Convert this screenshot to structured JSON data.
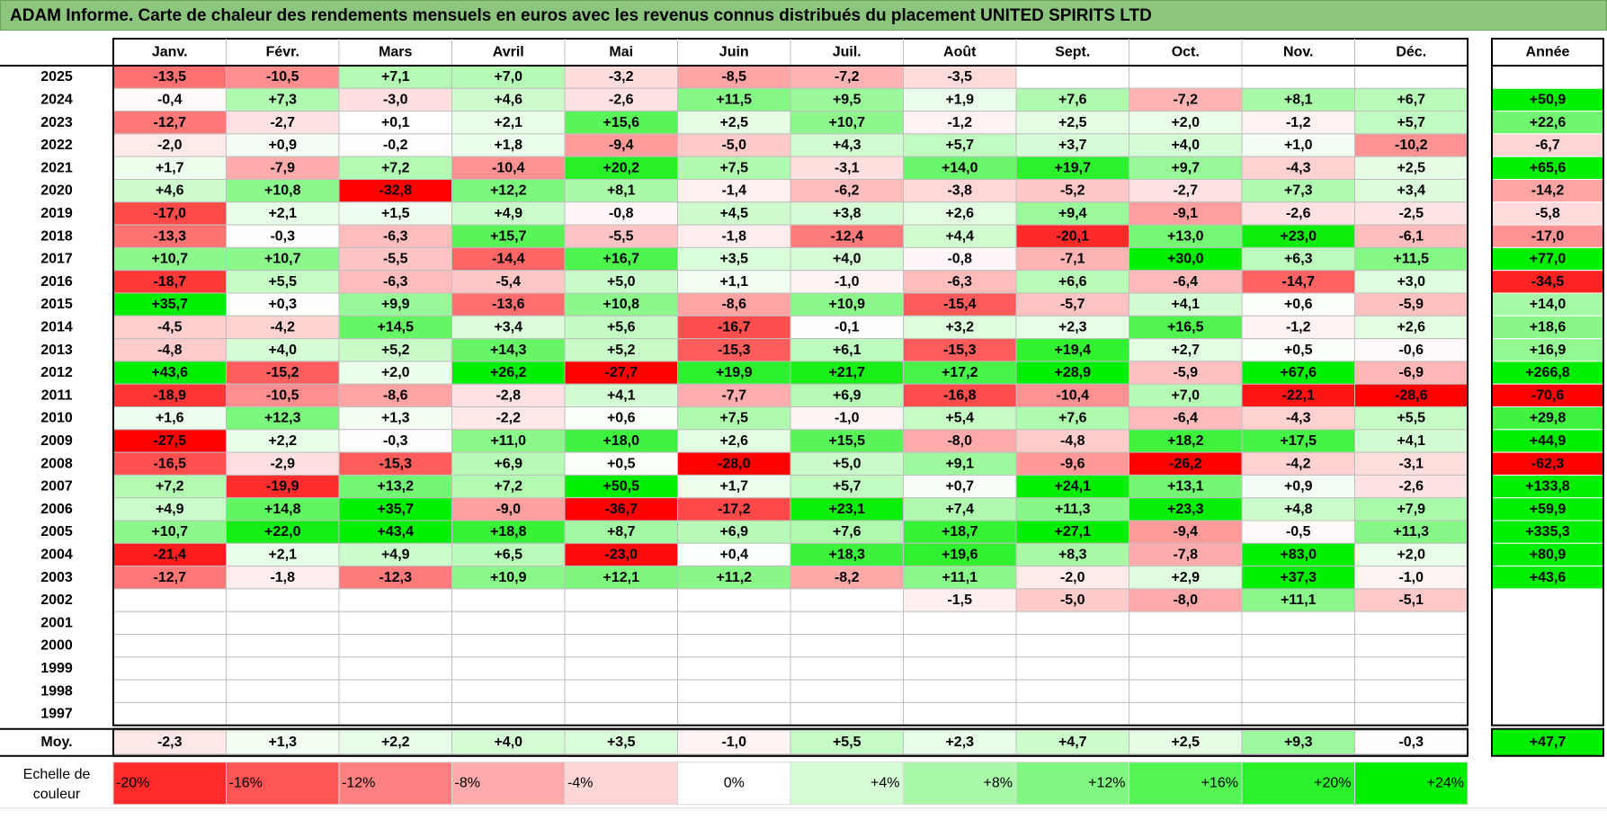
{
  "title": "ADAM Informe. Carte de chaleur des rendements mensuels en euros avec les revenus connus distribués du placement UNITED SPIRITS LTD",
  "chart_data": {
    "type": "heatmap",
    "months": [
      "Janv.",
      "Févr.",
      "Mars",
      "Avril",
      "Mai",
      "Juin",
      "Juil.",
      "Août",
      "Sept.",
      "Oct.",
      "Nov.",
      "Déc."
    ],
    "year_header": "Année",
    "rows": [
      {
        "year": "2025",
        "values": [
          "-13,5",
          "-10,5",
          "+7,1",
          "+7,0",
          "-3,2",
          "-8,5",
          "-7,2",
          "-3,5",
          "",
          "",
          "",
          ""
        ],
        "annual": ""
      },
      {
        "year": "2024",
        "values": [
          "-0,4",
          "+7,3",
          "-3,0",
          "+4,6",
          "-2,6",
          "+11,5",
          "+9,5",
          "+1,9",
          "+7,6",
          "-7,2",
          "+8,1",
          "+6,7"
        ],
        "annual": "+50,9"
      },
      {
        "year": "2023",
        "values": [
          "-12,7",
          "-2,7",
          "+0,1",
          "+2,1",
          "+15,6",
          "+2,5",
          "+10,7",
          "-1,2",
          "+2,5",
          "+2,0",
          "-1,2",
          "+5,7"
        ],
        "annual": "+22,6"
      },
      {
        "year": "2022",
        "values": [
          "-2,0",
          "+0,9",
          "-0,2",
          "+1,8",
          "-9,4",
          "-5,0",
          "+4,3",
          "+5,7",
          "+3,7",
          "+4,0",
          "+1,0",
          "-10,2"
        ],
        "annual": "-6,7"
      },
      {
        "year": "2021",
        "values": [
          "+1,7",
          "-7,9",
          "+7,2",
          "-10,4",
          "+20,2",
          "+7,5",
          "-3,1",
          "+14,0",
          "+19,7",
          "+9,7",
          "-4,3",
          "+2,5"
        ],
        "annual": "+65,6"
      },
      {
        "year": "2020",
        "values": [
          "+4,6",
          "+10,8",
          "-32,8",
          "+12,2",
          "+8,1",
          "-1,4",
          "-6,2",
          "-3,8",
          "-5,2",
          "-2,7",
          "+7,3",
          "+3,4"
        ],
        "annual": "-14,2"
      },
      {
        "year": "2019",
        "values": [
          "-17,0",
          "+2,1",
          "+1,5",
          "+4,9",
          "-0,8",
          "+4,5",
          "+3,8",
          "+2,6",
          "+9,4",
          "-9,1",
          "-2,6",
          "-2,5"
        ],
        "annual": "-5,8"
      },
      {
        "year": "2018",
        "values": [
          "-13,3",
          "-0,3",
          "-6,3",
          "+15,7",
          "-5,5",
          "-1,8",
          "-12,4",
          "+4,4",
          "-20,1",
          "+13,0",
          "+23,0",
          "-6,1"
        ],
        "annual": "-17,0"
      },
      {
        "year": "2017",
        "values": [
          "+10,7",
          "+10,7",
          "-5,5",
          "-14,4",
          "+16,7",
          "+3,5",
          "+4,0",
          "-0,8",
          "-7,1",
          "+30,0",
          "+6,3",
          "+11,5"
        ],
        "annual": "+77,0"
      },
      {
        "year": "2016",
        "values": [
          "-18,7",
          "+5,5",
          "-6,3",
          "-5,4",
          "+5,0",
          "+1,1",
          "-1,0",
          "-6,3",
          "+6,6",
          "-6,4",
          "-14,7",
          "+3,0"
        ],
        "annual": "-34,5"
      },
      {
        "year": "2015",
        "values": [
          "+35,7",
          "+0,3",
          "+9,9",
          "-13,6",
          "+10,8",
          "-8,6",
          "+10,9",
          "-15,4",
          "-5,7",
          "+4,1",
          "+0,6",
          "-5,9"
        ],
        "annual": "+14,0"
      },
      {
        "year": "2014",
        "values": [
          "-4,5",
          "-4,2",
          "+14,5",
          "+3,4",
          "+5,6",
          "-16,7",
          "-0,1",
          "+3,2",
          "+2,3",
          "+16,5",
          "-1,2",
          "+2,6"
        ],
        "annual": "+18,6"
      },
      {
        "year": "2013",
        "values": [
          "-4,8",
          "+4,0",
          "+5,2",
          "+14,3",
          "+5,2",
          "-15,3",
          "+6,1",
          "-15,3",
          "+19,4",
          "+2,7",
          "+0,5",
          "-0,6"
        ],
        "annual": "+16,9"
      },
      {
        "year": "2012",
        "values": [
          "+43,6",
          "-15,2",
          "+2,0",
          "+26,2",
          "-27,7",
          "+19,9",
          "+21,7",
          "+17,2",
          "+28,9",
          "-5,9",
          "+67,6",
          "-6,9"
        ],
        "annual": "+266,8"
      },
      {
        "year": "2011",
        "values": [
          "-18,9",
          "-10,5",
          "-8,6",
          "-2,8",
          "+4,1",
          "-7,7",
          "+6,9",
          "-16,8",
          "-10,4",
          "+7,0",
          "-22,1",
          "-28,6"
        ],
        "annual": "-70,6"
      },
      {
        "year": "2010",
        "values": [
          "+1,6",
          "+12,3",
          "+1,3",
          "-2,2",
          "+0,6",
          "+7,5",
          "-1,0",
          "+5,4",
          "+7,6",
          "-6,4",
          "-4,3",
          "+5,5"
        ],
        "annual": "+29,8"
      },
      {
        "year": "2009",
        "values": [
          "-27,5",
          "+2,2",
          "-0,3",
          "+11,0",
          "+18,0",
          "+2,6",
          "+15,5",
          "-8,0",
          "-4,8",
          "+18,2",
          "+17,5",
          "+4,1"
        ],
        "annual": "+44,9"
      },
      {
        "year": "2008",
        "values": [
          "-16,5",
          "-2,9",
          "-15,3",
          "+6,9",
          "+0,5",
          "-28,0",
          "+5,0",
          "+9,1",
          "-9,6",
          "-26,2",
          "-4,2",
          "-3,1"
        ],
        "annual": "-62,3"
      },
      {
        "year": "2007",
        "values": [
          "+7,2",
          "-19,9",
          "+13,2",
          "+7,2",
          "+50,5",
          "+1,7",
          "+5,7",
          "+0,7",
          "+24,1",
          "+13,1",
          "+0,9",
          "-2,6"
        ],
        "annual": "+133,8"
      },
      {
        "year": "2006",
        "values": [
          "+4,9",
          "+14,8",
          "+35,7",
          "-9,0",
          "-36,7",
          "-17,2",
          "+23,1",
          "+7,4",
          "+11,3",
          "+23,3",
          "+4,8",
          "+7,9"
        ],
        "annual": "+59,9"
      },
      {
        "year": "2005",
        "values": [
          "+10,7",
          "+22,0",
          "+43,4",
          "+18,8",
          "+8,7",
          "+6,9",
          "+7,6",
          "+18,7",
          "+27,1",
          "-9,4",
          "-0,5",
          "+11,3"
        ],
        "annual": "+335,3"
      },
      {
        "year": "2004",
        "values": [
          "-21,4",
          "+2,1",
          "+4,9",
          "+6,5",
          "-23,0",
          "+0,4",
          "+18,3",
          "+19,6",
          "+8,3",
          "-7,8",
          "+83,0",
          "+2,0"
        ],
        "annual": "+80,9"
      },
      {
        "year": "2003",
        "values": [
          "-12,7",
          "-1,8",
          "-12,3",
          "+10,9",
          "+12,1",
          "+11,2",
          "-8,2",
          "+11,1",
          "-2,0",
          "+2,9",
          "+37,3",
          "-1,0"
        ],
        "annual": "+43,6"
      },
      {
        "year": "2002",
        "values": [
          "",
          "",
          "",
          "",
          "",
          "",
          "",
          "-1,5",
          "-5,0",
          "-8,0",
          "+11,1",
          "-5,1"
        ],
        "annual": ""
      },
      {
        "year": "2001",
        "values": [
          "",
          "",
          "",
          "",
          "",
          "",
          "",
          "",
          "",
          "",
          "",
          ""
        ],
        "annual": ""
      },
      {
        "year": "2000",
        "values": [
          "",
          "",
          "",
          "",
          "",
          "",
          "",
          "",
          "",
          "",
          "",
          ""
        ],
        "annual": ""
      },
      {
        "year": "1999",
        "values": [
          "",
          "",
          "",
          "",
          "",
          "",
          "",
          "",
          "",
          "",
          "",
          ""
        ],
        "annual": ""
      },
      {
        "year": "1998",
        "values": [
          "",
          "",
          "",
          "",
          "",
          "",
          "",
          "",
          "",
          "",
          "",
          ""
        ],
        "annual": ""
      },
      {
        "year": "1997",
        "values": [
          "",
          "",
          "",
          "",
          "",
          "",
          "",
          "",
          "",
          "",
          "",
          ""
        ],
        "annual": ""
      }
    ],
    "average": {
      "label": "Moy.",
      "values": [
        "-2,3",
        "+1,3",
        "+2,2",
        "+4,0",
        "+3,5",
        "-1,0",
        "+5,5",
        "+2,3",
        "+4,7",
        "+2,5",
        "+9,3",
        "-0,3"
      ],
      "annual": "+47,7"
    },
    "scale": {
      "label_line1": "Echelle de",
      "label_line2": "couleur",
      "steps": [
        "-20%",
        "-16%",
        "-12%",
        "-8%",
        "-4%",
        "0%",
        "+4%",
        "+8%",
        "+12%",
        "+16%",
        "+20%",
        "+24%"
      ],
      "step_values": [
        -20,
        -16,
        -12,
        -8,
        -4,
        0,
        4,
        8,
        12,
        16,
        20,
        24
      ]
    },
    "colors": {
      "negative_max": "#ff0000",
      "neutral": "#ffffff",
      "positive_max": "#00ee00",
      "title_bg": "#8cc67e",
      "grid": "#bfbfbf",
      "border": "#000000"
    }
  }
}
